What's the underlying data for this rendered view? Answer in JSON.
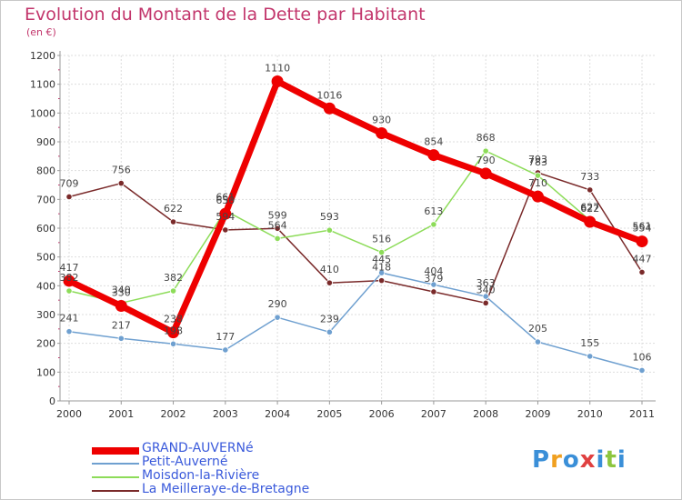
{
  "header": {
    "title": "Evolution du Montant de la Dette par Habitant",
    "unit": "(en €)"
  },
  "chart_data": {
    "type": "line",
    "title": "Evolution du Montant de la Dette par Habitant",
    "subtitle": "(en €)",
    "xlabel": "",
    "ylabel": "",
    "x": [
      "2000",
      "2001",
      "2002",
      "2003",
      "2004",
      "2005",
      "2006",
      "2007",
      "2008",
      "2009",
      "2010",
      "2011"
    ],
    "ylim": [
      0,
      1200
    ],
    "yticks": [
      "0",
      "100",
      "200",
      "300",
      "400",
      "500",
      "600",
      "700",
      "800",
      "900",
      "1000",
      "1100",
      "1200"
    ],
    "grid": true,
    "legend_position": "bottom-left",
    "series": [
      {
        "name": "GRAND-AUVERNé",
        "color": "#ee0000",
        "values": [
          417,
          330,
          238,
          650,
          1110,
          1016,
          930,
          854,
          790,
          710,
          622,
          554
        ]
      },
      {
        "name": "Petit-Auverné",
        "color": "#6fa0d0",
        "values": [
          241,
          217,
          198,
          177,
          290,
          239,
          445,
          404,
          363,
          205,
          155,
          106
        ]
      },
      {
        "name": "Moisdon-la-Rivière",
        "color": "#8ddc59",
        "values": [
          382,
          340,
          382,
          661,
          564,
          593,
          516,
          613,
          868,
          783,
          627,
          561
        ]
      },
      {
        "name": "La Meilleraye-de-Bretagne",
        "color": "#7a2a2a",
        "values": [
          709,
          756,
          622,
          594,
          599,
          410,
          418,
          379,
          340,
          793,
          733,
          447
        ]
      }
    ]
  },
  "legend": {
    "items": [
      {
        "label": "GRAND-AUVERNé"
      },
      {
        "label": "Petit-Auverné"
      },
      {
        "label": "Moisdon-la-Rivière"
      },
      {
        "label": "La Meilleraye-de-Bretagne"
      }
    ]
  },
  "logo": {
    "text": "Proxiti",
    "letters": [
      "P",
      "r",
      "o",
      "x",
      "i",
      "t",
      "i"
    ],
    "colors": [
      "#3a8fd8",
      "#f0a020",
      "#3a8fd8",
      "#e04040",
      "#3a8fd8",
      "#8dc63f",
      "#3a8fd8"
    ]
  }
}
